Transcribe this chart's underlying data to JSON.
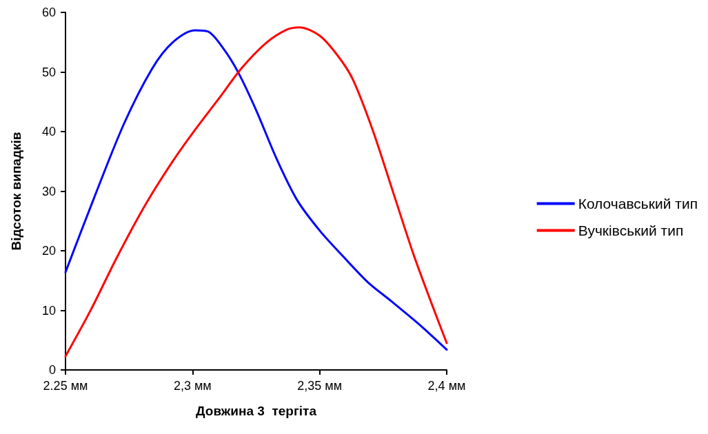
{
  "chart_data": {
    "type": "line",
    "xlabel": "Довжина 3  тергіта",
    "ylabel": "Відсоток випадків",
    "xlim": [
      2.25,
      2.4
    ],
    "ylim": [
      0,
      60
    ],
    "xticks": [
      {
        "value": 2.25,
        "label": "2.25 мм"
      },
      {
        "value": 2.3,
        "label": "2,3 мм"
      },
      {
        "value": 2.35,
        "label": "2,35 мм"
      },
      {
        "value": 2.4,
        "label": "2,4 мм"
      }
    ],
    "yticks": [
      0,
      10,
      20,
      30,
      40,
      50,
      60
    ],
    "grid": false,
    "legend": "right",
    "marker": "none",
    "line_style": "solid",
    "series": [
      {
        "name": "Колочавський тип",
        "color": "#0000ff",
        "x": [
          2.25,
          2.261,
          2.273,
          2.284,
          2.292,
          2.301,
          2.306,
          2.312,
          2.318,
          2.325,
          2.333,
          2.341,
          2.35,
          2.36,
          2.369,
          2.378,
          2.389,
          2.4
        ],
        "values": [
          16.4,
          28.6,
          41.3,
          50.5,
          54.9,
          57.0,
          56.8,
          54.0,
          49.9,
          43.6,
          35.5,
          28.6,
          23.4,
          18.7,
          14.7,
          11.6,
          7.7,
          3.4
        ]
      },
      {
        "name": "Вучківський тип",
        "color": "#ff0000",
        "x": [
          2.25,
          2.26,
          2.27,
          2.281,
          2.292,
          2.301,
          2.311,
          2.319,
          2.329,
          2.337,
          2.342,
          2.35,
          2.357,
          2.363,
          2.371,
          2.379,
          2.387,
          2.394,
          2.4
        ],
        "values": [
          2.3,
          10.1,
          18.7,
          27.4,
          34.9,
          40.3,
          45.9,
          50.5,
          54.9,
          57.1,
          57.5,
          56.1,
          52.8,
          48.8,
          40.1,
          29.7,
          19.3,
          11.2,
          4.5
        ]
      }
    ]
  }
}
